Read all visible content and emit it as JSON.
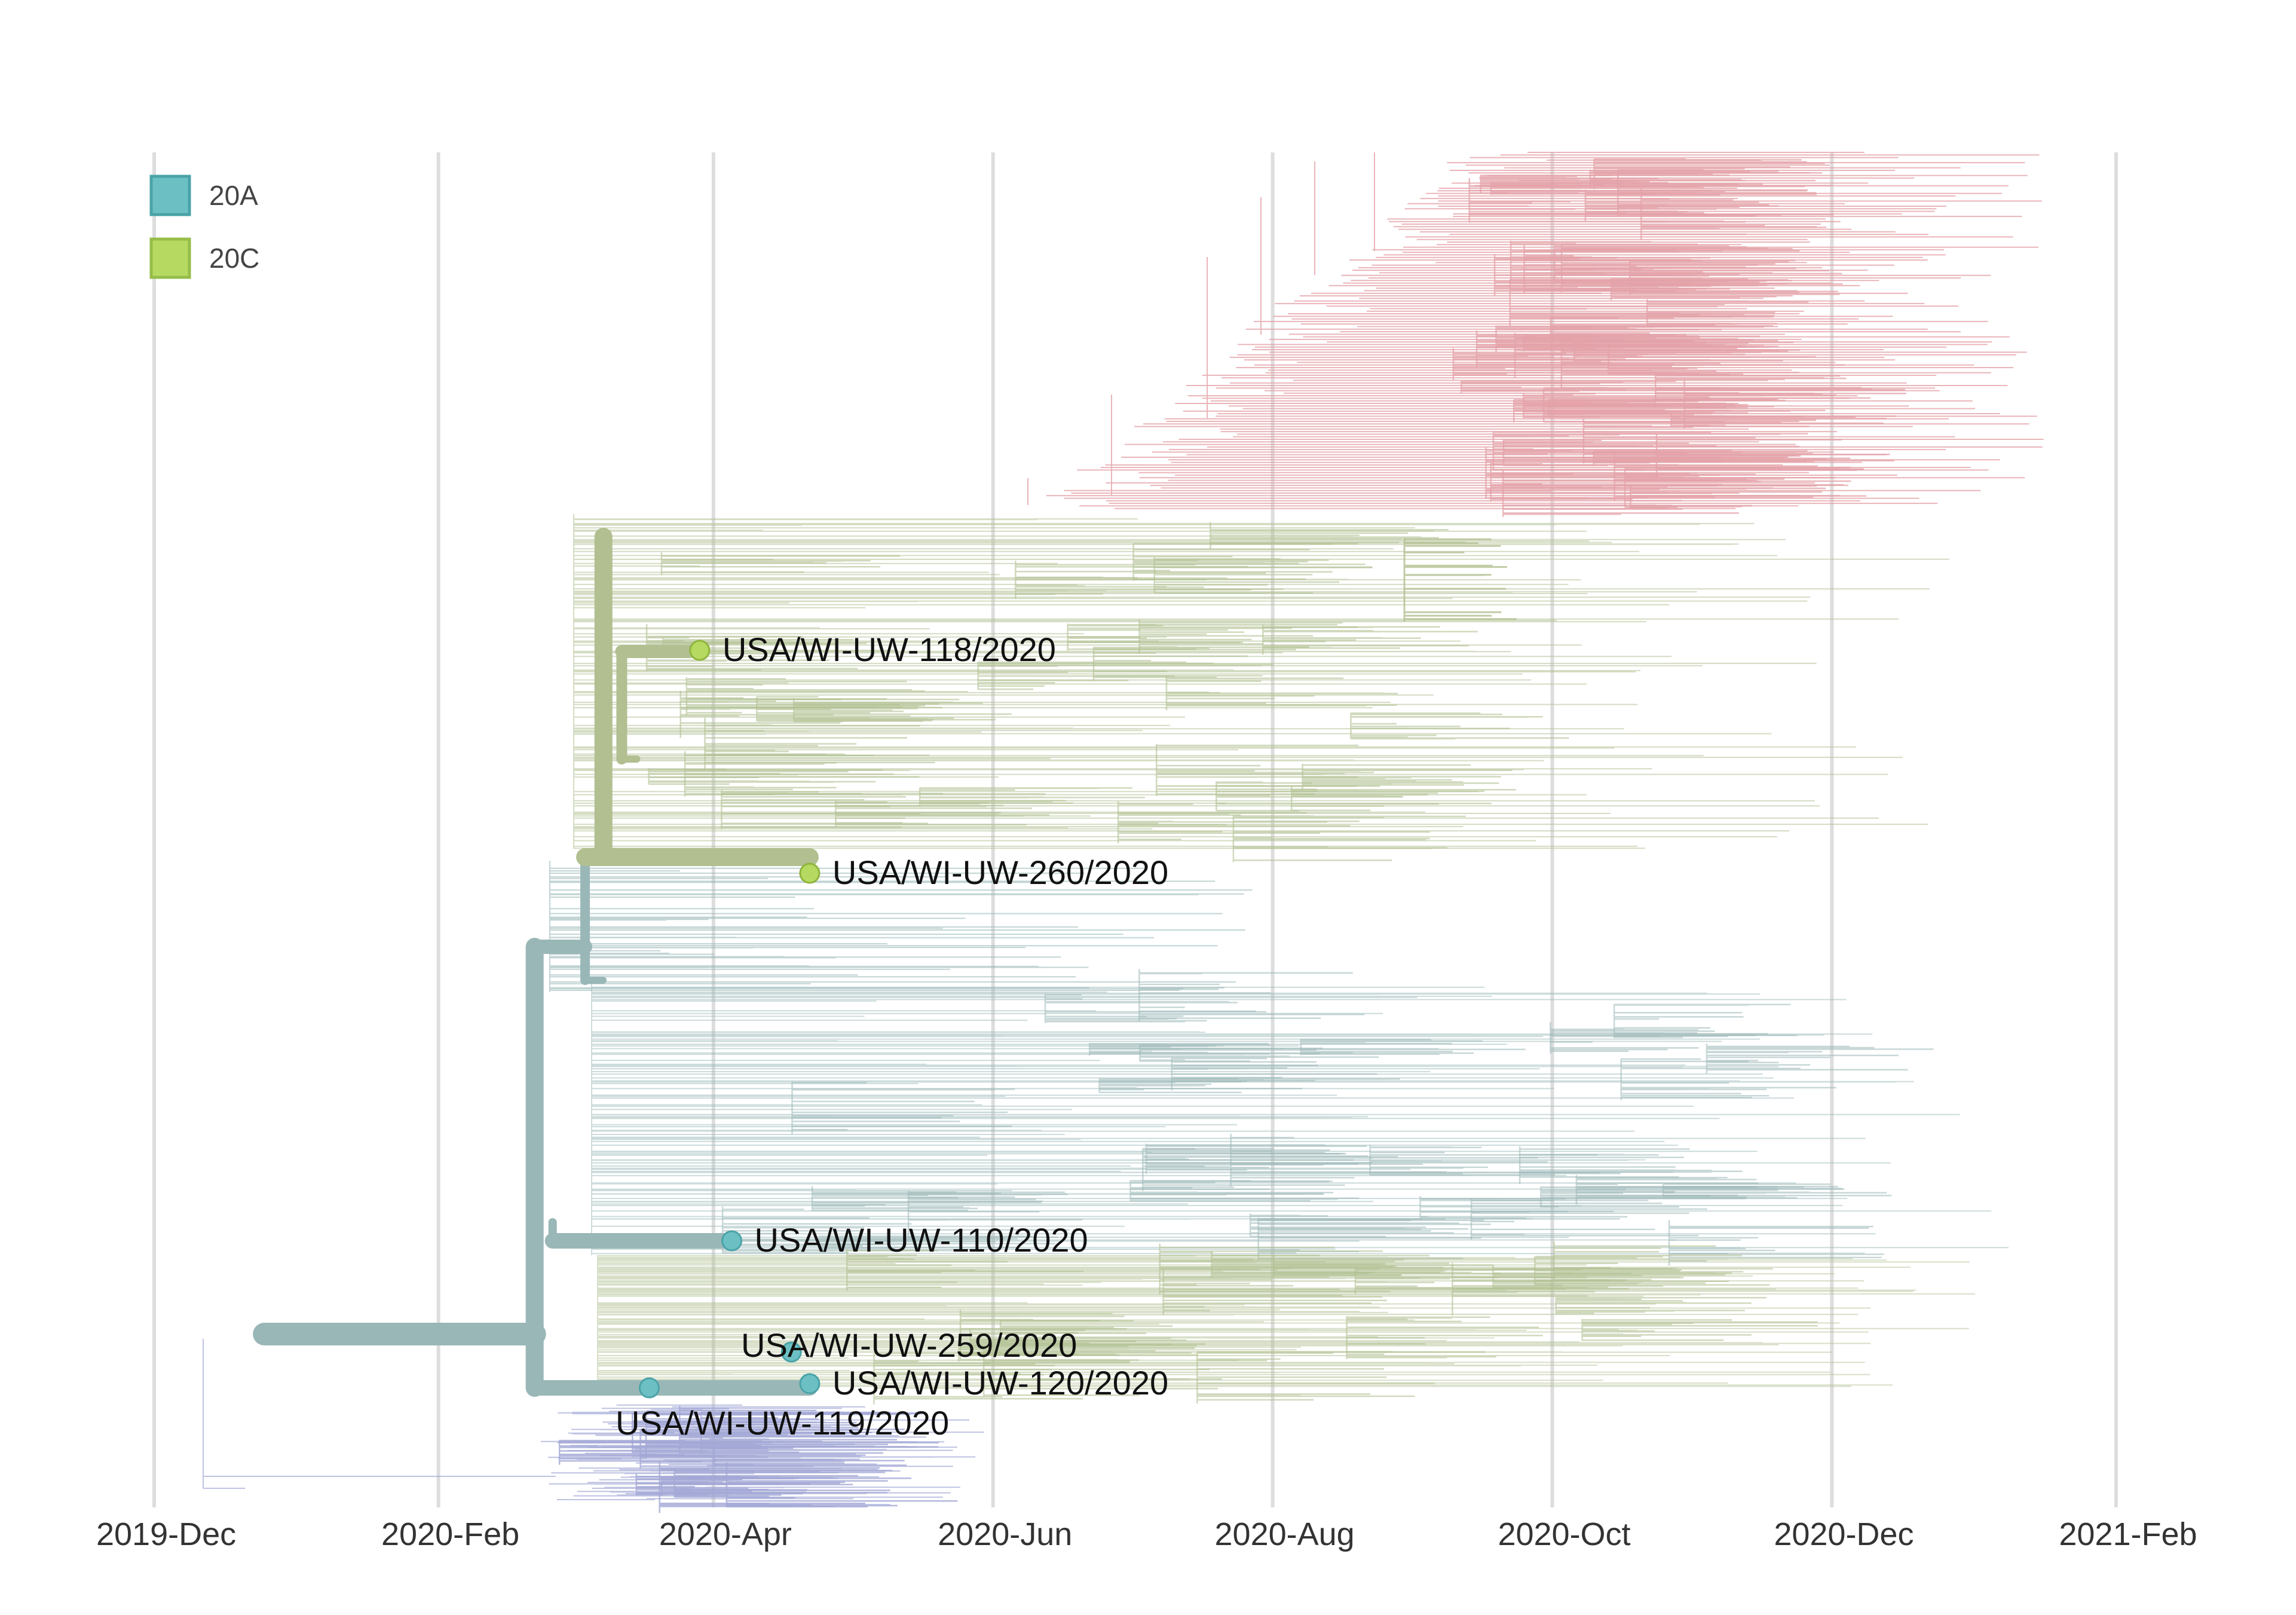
{
  "chart_data": {
    "type": "phylogenetic-tree",
    "x_axis": {
      "type": "date",
      "range": [
        "2019-11-16",
        "2021-02-13"
      ],
      "ticks": [
        "2019-Dec",
        "2020-Feb",
        "2020-Apr",
        "2020-Jun",
        "2020-Aug",
        "2020-Oct",
        "2020-Dec",
        "2021-Feb"
      ],
      "grid": true
    },
    "legend": {
      "placement": "top-left",
      "items": [
        {
          "label": "20A",
          "color": "#6cc0c4"
        },
        {
          "label": "20C",
          "color": "#b6d961"
        }
      ]
    },
    "colors": {
      "clade_20A_branch": "#9ab7b7",
      "clade_20C_branch": "#b1bf91",
      "pink_clade": "#e3a2a8",
      "purple_clade": "#a3a8d6",
      "grid": "#dddddd"
    },
    "highlighted_tips": [
      {
        "label": "USA/WI-UW-118/2020",
        "date": "2020-03-29",
        "clade": "20C"
      },
      {
        "label": "USA/WI-UW-260/2020",
        "date": "2020-04-22",
        "clade": "20C"
      },
      {
        "label": "USA/WI-UW-110/2020",
        "date": "2020-04-05",
        "clade": "20A"
      },
      {
        "label": "USA/WI-UW-259/2020",
        "date": "2020-04-18",
        "clade": "20A"
      },
      {
        "label": "USA/WI-UW-120/2020",
        "date": "2020-04-22",
        "clade": "20A"
      },
      {
        "label": "USA/WI-UW-119/2020",
        "date": "2020-03-18",
        "clade": "20A"
      }
    ]
  }
}
